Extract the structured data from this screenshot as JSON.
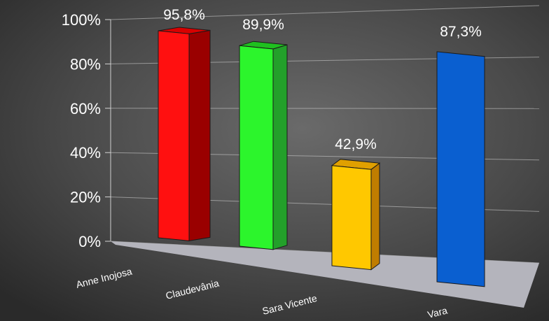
{
  "chart_data": {
    "type": "bar",
    "categories": [
      "Anne Inojosa",
      "Claudevânia",
      "Sara Vicente",
      "Vara"
    ],
    "values": [
      95.8,
      89.9,
      42.9,
      87.3
    ],
    "value_labels": [
      "95,8%",
      "89,9%",
      "42,9%",
      "87,3%"
    ],
    "ylim": [
      0,
      100
    ],
    "yticks": [
      "0%",
      "20%",
      "40%",
      "60%",
      "80%",
      "100%"
    ],
    "title": "",
    "xlabel": "",
    "ylabel": "",
    "grid": true,
    "style": "3d-perspective",
    "colors": [
      "#ff1010",
      "#2cf52c",
      "#ffc800",
      "#0a5fd0"
    ],
    "side_colors": [
      "#9a0000",
      "#23a02a",
      "#c07d00",
      "#0a4aa8"
    ],
    "top_colors": [
      "#d80000",
      "#1fc01f",
      "#e0a000",
      "#0a4fb8"
    ],
    "background": "#3a3a3a",
    "text_color": "#ffffff",
    "floor_color": "#b4b4bc"
  }
}
